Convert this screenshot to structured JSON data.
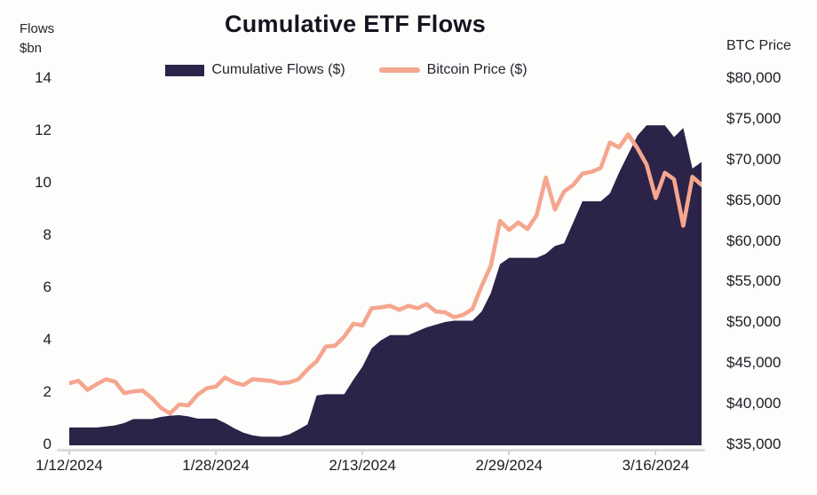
{
  "title": "Cumulative ETF Flows",
  "left_axis": {
    "label_line1": "Flows",
    "label_line2": "$bn",
    "ticks": [
      "14",
      "12",
      "10",
      "8",
      "6",
      "4",
      "2",
      "0"
    ]
  },
  "right_axis": {
    "label": "BTC Price",
    "ticks": [
      "$80,000",
      "$75,000",
      "$70,000",
      "$65,000",
      "$60,000",
      "$55,000",
      "$50,000",
      "$45,000",
      "$40,000",
      "$35,000"
    ]
  },
  "legend": [
    {
      "label": "Cumulative Flows ($)",
      "color": "#2b2348",
      "type": "area"
    },
    {
      "label": "Bitcoin Price ($)",
      "color": "#f5a68e",
      "type": "line"
    }
  ],
  "x_axis": {
    "tick_labels": [
      "1/12/2024",
      "1/28/2024",
      "2/13/2024",
      "2/29/2024",
      "3/16/2024"
    ],
    "tick_indices": [
      0,
      16,
      32,
      48,
      64
    ]
  },
  "chart_data": {
    "type": "combo",
    "title": "Cumulative ETF Flows",
    "grid": false,
    "legend_position": "top",
    "left_ylabel": "Flows $bn",
    "right_ylabel": "BTC Price",
    "left_ylim": [
      0,
      14
    ],
    "right_ylim": [
      35000,
      80000
    ],
    "x": [
      "1/12/2024",
      "1/13/2024",
      "1/14/2024",
      "1/15/2024",
      "1/16/2024",
      "1/17/2024",
      "1/18/2024",
      "1/19/2024",
      "1/20/2024",
      "1/21/2024",
      "1/22/2024",
      "1/23/2024",
      "1/24/2024",
      "1/25/2024",
      "1/26/2024",
      "1/27/2024",
      "1/28/2024",
      "1/29/2024",
      "1/30/2024",
      "1/31/2024",
      "2/1/2024",
      "2/2/2024",
      "2/3/2024",
      "2/4/2024",
      "2/5/2024",
      "2/6/2024",
      "2/7/2024",
      "2/8/2024",
      "2/9/2024",
      "2/10/2024",
      "2/11/2024",
      "2/12/2024",
      "2/13/2024",
      "2/14/2024",
      "2/15/2024",
      "2/16/2024",
      "2/17/2024",
      "2/18/2024",
      "2/19/2024",
      "2/20/2024",
      "2/21/2024",
      "2/22/2024",
      "2/23/2024",
      "2/24/2024",
      "2/25/2024",
      "2/26/2024",
      "2/27/2024",
      "2/28/2024",
      "2/29/2024",
      "3/1/2024",
      "3/2/2024",
      "3/3/2024",
      "3/4/2024",
      "3/5/2024",
      "3/6/2024",
      "3/7/2024",
      "3/8/2024",
      "3/9/2024",
      "3/10/2024",
      "3/11/2024",
      "3/12/2024",
      "3/13/2024",
      "3/14/2024",
      "3/15/2024",
      "3/16/2024",
      "3/17/2024",
      "3/18/2024",
      "3/19/2024",
      "3/20/2024",
      "3/21/2024"
    ],
    "series": [
      {
        "name": "Cumulative Flows ($)",
        "type": "area",
        "axis": "left",
        "unit": "$bn",
        "color": "#2b2348",
        "values": [
          0.68,
          0.68,
          0.68,
          0.68,
          0.72,
          0.76,
          0.85,
          1.0,
          1.0,
          1.0,
          1.08,
          1.13,
          1.15,
          1.1,
          1.02,
          1.02,
          1.02,
          0.85,
          0.65,
          0.48,
          0.38,
          0.33,
          0.33,
          0.33,
          0.42,
          0.6,
          0.8,
          1.9,
          1.95,
          1.95,
          1.95,
          2.5,
          3.0,
          3.7,
          4.0,
          4.2,
          4.2,
          4.2,
          4.35,
          4.5,
          4.6,
          4.7,
          4.75,
          4.75,
          4.75,
          5.1,
          5.8,
          6.9,
          7.15,
          7.15,
          7.15,
          7.15,
          7.3,
          7.6,
          7.7,
          8.5,
          9.3,
          9.3,
          9.3,
          9.6,
          10.4,
          11.1,
          11.8,
          12.2,
          12.2,
          12.2,
          11.75,
          12.1,
          10.55,
          10.8
        ]
      },
      {
        "name": "Bitcoin Price ($)",
        "type": "line",
        "axis": "right",
        "unit": "$",
        "color": "#f5a68e",
        "values": [
          42600,
          42900,
          41800,
          42500,
          43100,
          42800,
          41400,
          41600,
          41700,
          40800,
          39600,
          38900,
          40000,
          39900,
          41200,
          42000,
          42200,
          43300,
          42700,
          42400,
          43100,
          43000,
          42900,
          42600,
          42700,
          43100,
          44300,
          45300,
          47100,
          47200,
          48300,
          49900,
          49700,
          51800,
          51900,
          52100,
          51600,
          52100,
          51800,
          52300,
          51400,
          51300,
          50700,
          51000,
          51700,
          54500,
          57000,
          62500,
          61400,
          62300,
          61500,
          63200,
          67800,
          63900,
          66100,
          66900,
          68300,
          68500,
          69000,
          72100,
          71500,
          73100,
          71400,
          69400,
          65300,
          68400,
          67600,
          61900,
          67900,
          66900
        ]
      }
    ]
  }
}
